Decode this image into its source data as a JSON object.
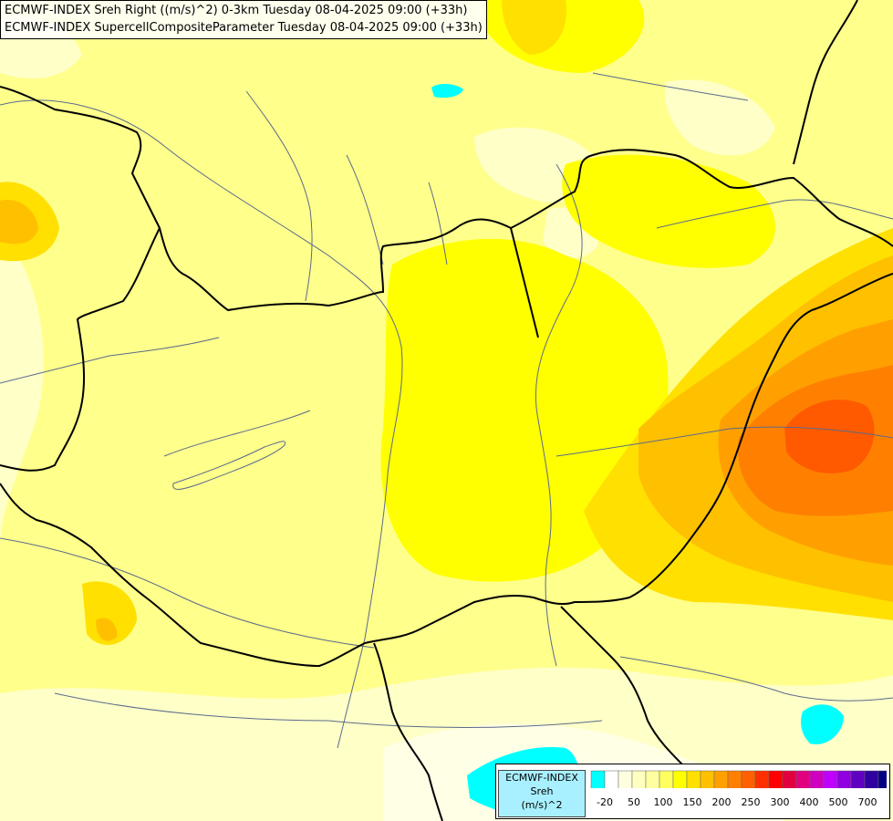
{
  "header": {
    "line1": "ECMWF-INDEX Sreh Right ((m/s)^2) 0-3km Tuesday 08-04-2025 09:00 (+33h)",
    "line2": "ECMWF-INDEX SupercellCompositeParameter Tuesday 08-04-2025 09:00 (+33h)"
  },
  "legend": {
    "line1": "ECMWF-INDEX",
    "line2": "Sreh",
    "line3": "(m/s)^2",
    "colors": [
      "#00ffff",
      "#ffffff",
      "#ffffe0",
      "#ffffc0",
      "#ffffa0",
      "#ffff60",
      "#ffff00",
      "#ffe000",
      "#ffc000",
      "#ffa000",
      "#ff8000",
      "#ff6000",
      "#ff3000",
      "#ff0000",
      "#e00040",
      "#e00080",
      "#d000c0",
      "#c000ff",
      "#9000e0",
      "#6000c0",
      "#3000a0",
      "#000080"
    ],
    "ticks": [
      "-20",
      "50",
      "100",
      "150",
      "200",
      "250",
      "300",
      "400",
      "500",
      "700"
    ]
  },
  "map": {
    "colors": {
      "background": "#ffff8c",
      "light": "#ffffc8",
      "pale": "#ffffe6",
      "yellow": "#ffff00",
      "gold": "#ffe000",
      "amber": "#ffc000",
      "orange": "#ffa000",
      "deep_orange": "#ff8000",
      "red_orange": "#ff5a00",
      "cyan": "#00ffff",
      "border": "#000000",
      "river": "#5a6a8a"
    }
  }
}
